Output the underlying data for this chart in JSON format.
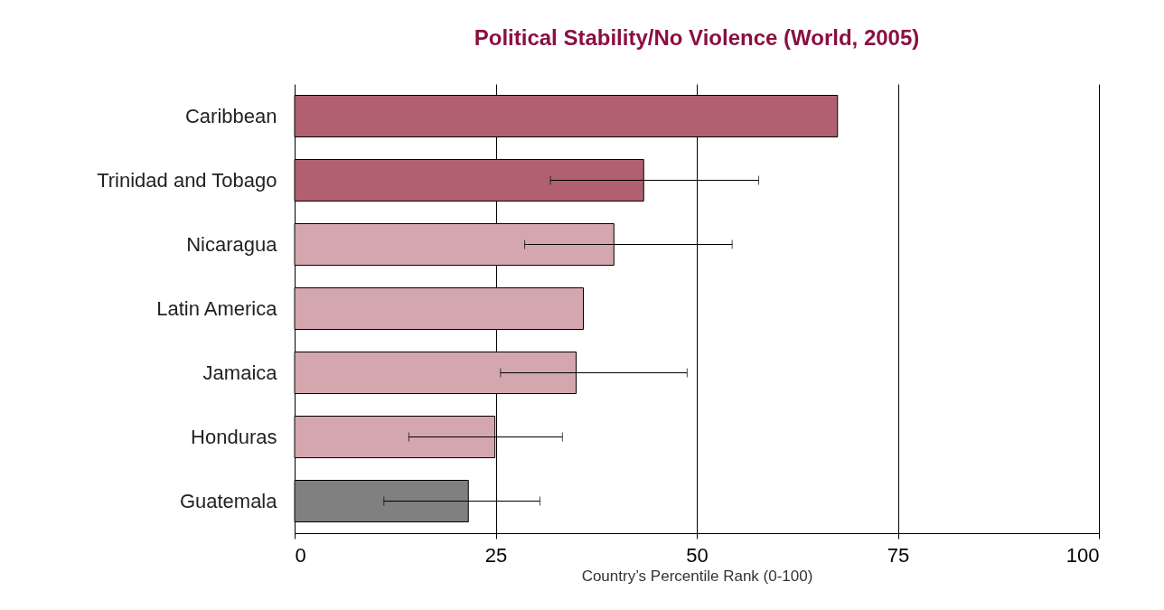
{
  "chart_data": {
    "type": "bar",
    "orientation": "horizontal",
    "title": "Political Stability/No Violence (World, 2005)",
    "xlabel": "Country’s Percentile Rank (0-100)",
    "categories": [
      "Caribbean",
      "Trinidad and Tobago",
      "Nicaragua",
      "Latin America",
      "Jamaica",
      "Honduras",
      "Guatemala"
    ],
    "values": [
      67.5,
      43.4,
      39.7,
      35.9,
      35.0,
      24.9,
      21.6
    ],
    "colors": [
      "#b06070",
      "#b06070",
      "#d4a7ae",
      "#d4a7ae",
      "#d4a7ae",
      "#d4a7ae",
      "#808080"
    ],
    "errors": [
      null,
      [
        31.8,
        57.7
      ],
      [
        28.6,
        54.4
      ],
      null,
      [
        25.6,
        48.8
      ],
      [
        14.2,
        33.3
      ],
      [
        11.1,
        30.5
      ]
    ],
    "xlim": [
      0,
      100
    ],
    "xticks": [
      0,
      25,
      50,
      75,
      100
    ],
    "grid": "x",
    "legend": false
  }
}
